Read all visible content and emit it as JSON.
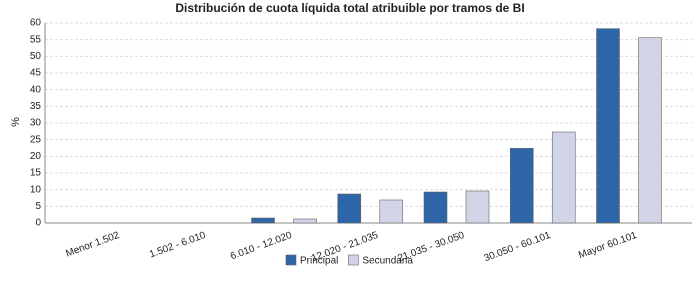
{
  "chart_data": {
    "type": "bar",
    "title": "Distribución de cuota líquida total atribuible por tramos de BI",
    "y_label": "%",
    "categories": [
      "Menor 1.502",
      "1.502 - 6.010",
      "6.010 - 12.020",
      "12.020 - 21.035",
      "21.035 - 30.050",
      "30.050 - 60.101",
      "Mayor 60.101"
    ],
    "series": [
      {
        "name": "Principal",
        "color": "#2e64a8",
        "values": [
          0,
          0,
          1.5,
          8.7,
          9.3,
          22.4,
          58.3
        ]
      },
      {
        "name": "Secundaria",
        "color": "#d0d4e6",
        "values": [
          0,
          0,
          1.2,
          6.9,
          9.6,
          27.3,
          55.6
        ]
      }
    ],
    "ylim": [
      0,
      60
    ],
    "yticks": [
      0,
      5,
      10,
      15,
      20,
      25,
      30,
      35,
      40,
      45,
      50,
      55,
      60
    ],
    "grid": true,
    "legend": "bottom"
  }
}
